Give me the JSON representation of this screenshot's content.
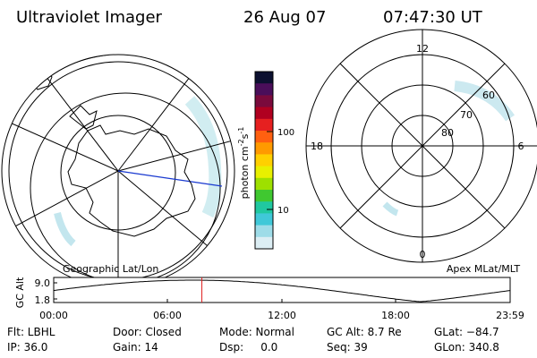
{
  "header": {
    "title": "Ultraviolet Imager",
    "date": "26 Aug 07",
    "time": "07:47:30 UT"
  },
  "left_map": {
    "caption": "Geographic Lat/Lon"
  },
  "right_map": {
    "caption": "Apex MLat/MLT",
    "lat_labels": [
      "60",
      "70",
      "80"
    ],
    "mlt_labels": [
      "12",
      "18",
      "6",
      "0"
    ]
  },
  "colorbar": {
    "unit_label": "photon cm",
    "unit_exp1": "-2",
    "unit_s": "s",
    "unit_exp2": "-1",
    "ticks": [
      "100",
      "10"
    ],
    "colors": [
      "#0c1030",
      "#4a0e5a",
      "#7a0a3c",
      "#b00020",
      "#e62020",
      "#ff6010",
      "#ff9a00",
      "#ffd000",
      "#e8f000",
      "#9ee000",
      "#40c830",
      "#20c8a0",
      "#40c8d8",
      "#9edce8",
      "#dceef4"
    ]
  },
  "altitude_plot": {
    "ylabel": "GC Alt",
    "ytick_top": "9.0",
    "ytick_bottom": "1.8",
    "xticks": [
      "00:00",
      "06:00",
      "12:00",
      "18:00",
      "23:59"
    ],
    "marker_time_hours": 7.79
  },
  "status": {
    "flt": "Flt: LBHL",
    "ip": "IP: 36.0",
    "door": "Door: Closed",
    "gain": "Gain: 14",
    "mode": "Mode: Normal",
    "dsp": "Dsp:     0.0",
    "gcalt": "GC Alt: 8.7 Re",
    "seq": "Seq: 39",
    "glat": "GLat: −84.7",
    "glon": "GLon: 340.8"
  }
}
